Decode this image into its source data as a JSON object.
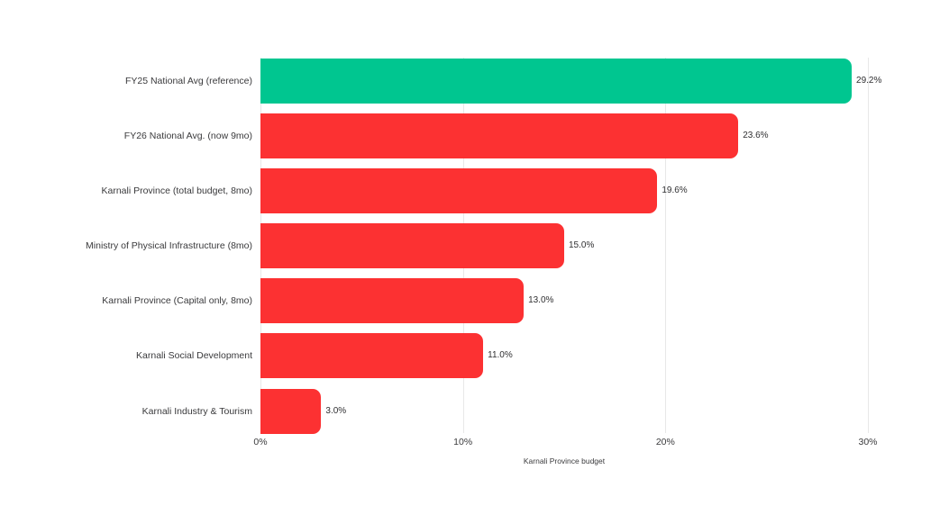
{
  "chart_data": {
    "type": "bar",
    "orientation": "horizontal",
    "title": "",
    "xlabel": "Karnali Province budget",
    "ylabel": "",
    "categories": [
      "FY25 National Avg (reference)",
      "FY26 National Avg. (now 9mo)",
      "Karnali Province (total budget, 8mo)",
      "Ministry of Physical Infrastructure (8mo)",
      "Karnali Province (Capital only, 8mo)",
      "Karnali Social Development",
      "Karnali Industry & Tourism"
    ],
    "values": [
      29.2,
      23.6,
      19.6,
      15.0,
      13.0,
      11.0,
      3.0
    ],
    "value_labels": [
      "29.2%",
      "23.6%",
      "19.6%",
      "15.0%",
      "13.0%",
      "11.0%",
      "3.0%"
    ],
    "bar_colors": [
      "#00C690",
      "#FC3132",
      "#FC3132",
      "#FC3132",
      "#FC3132",
      "#FC3132",
      "#FC3132"
    ],
    "xlim": [
      0,
      30
    ],
    "x_ticks": [
      {
        "value": 0,
        "label": "0%"
      },
      {
        "value": 10,
        "label": "10%"
      },
      {
        "value": 20,
        "label": "20%"
      },
      {
        "value": 30,
        "label": "30%"
      }
    ],
    "grid": "vertical-gridlines-only",
    "legend": "none",
    "colors": {
      "highlight_green": "#00C690",
      "series_red": "#FC3132",
      "gridline": "#E8E8E8",
      "text": "#3A3A3C",
      "background": "#FFFFFF"
    }
  }
}
